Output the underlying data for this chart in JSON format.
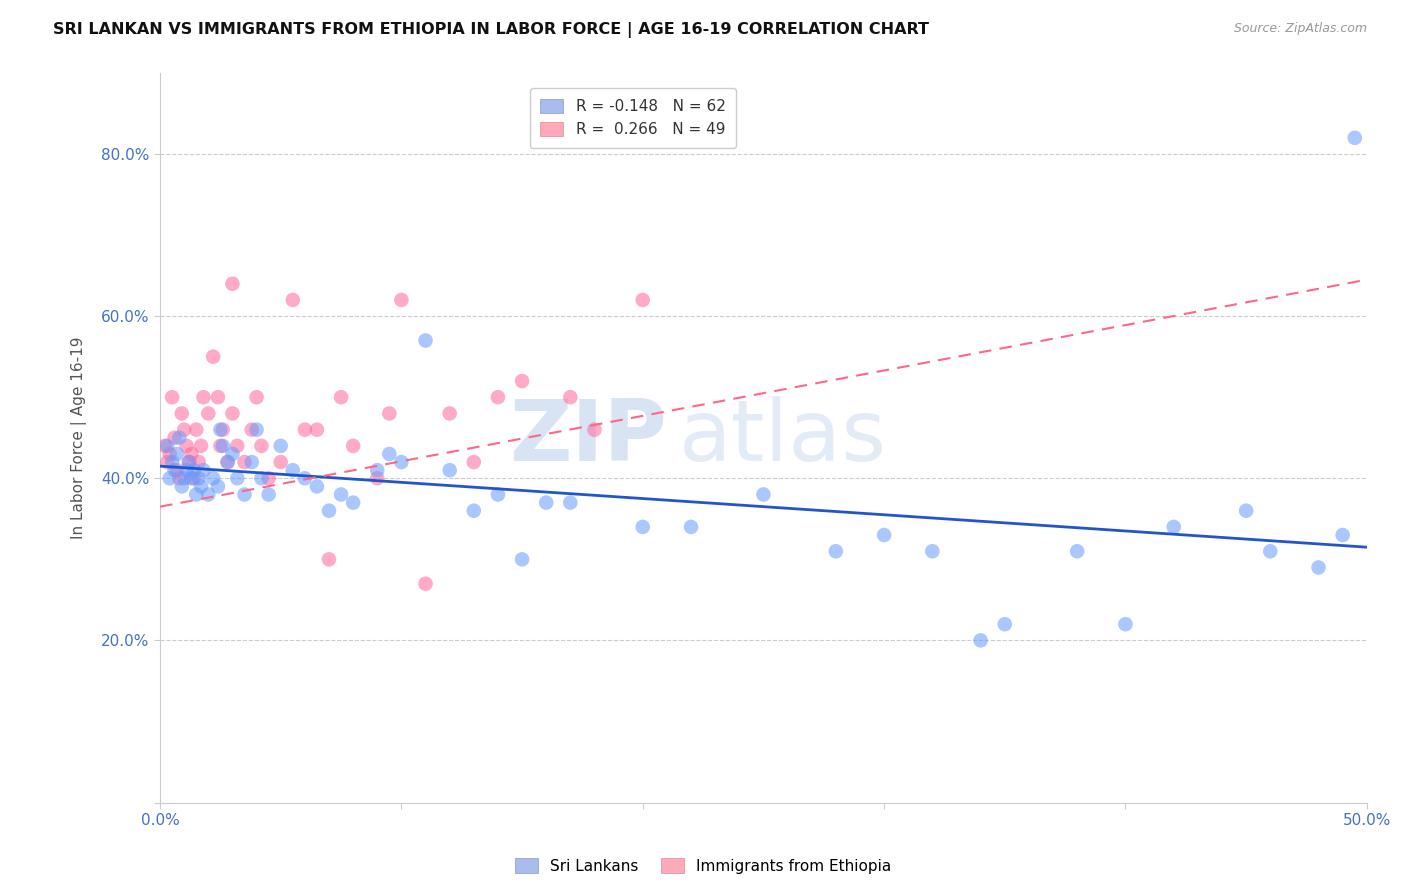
{
  "title": "SRI LANKAN VS IMMIGRANTS FROM ETHIOPIA IN LABOR FORCE | AGE 16-19 CORRELATION CHART",
  "source": "Source: ZipAtlas.com",
  "ylabel": "In Labor Force | Age 16-19",
  "xlim": [
    0.0,
    0.5
  ],
  "ylim": [
    0.0,
    0.9
  ],
  "xticks": [
    0.0,
    0.1,
    0.2,
    0.3,
    0.4,
    0.5
  ],
  "xticklabels": [
    "0.0%",
    "",
    "",
    "",
    "",
    "50.0%"
  ],
  "yticks": [
    0.0,
    0.2,
    0.4,
    0.6,
    0.8
  ],
  "yticklabels": [
    "",
    "20.0%",
    "40.0%",
    "60.0%",
    "80.0%"
  ],
  "sri_lankan_color": "#6699ff",
  "ethiopia_color": "#ff6699",
  "sri_lankan_label": "Sri Lankans",
  "ethiopia_label": "Immigrants from Ethiopia",
  "legend_blue_r": "R = -0.148",
  "legend_blue_n": "N = 62",
  "legend_pink_r": "R =  0.266",
  "legend_pink_n": "N = 49",
  "watermark_zip": "ZIP",
  "watermark_atlas": "atlas",
  "blue_line_x": [
    0.0,
    0.5
  ],
  "blue_line_y": [
    0.415,
    0.315
  ],
  "pink_line_x": [
    0.0,
    0.5
  ],
  "pink_line_y": [
    0.365,
    0.645
  ],
  "sri_lankan_x": [
    0.003,
    0.004,
    0.005,
    0.006,
    0.007,
    0.008,
    0.009,
    0.01,
    0.011,
    0.012,
    0.013,
    0.014,
    0.015,
    0.016,
    0.017,
    0.018,
    0.02,
    0.022,
    0.024,
    0.025,
    0.026,
    0.028,
    0.03,
    0.032,
    0.035,
    0.038,
    0.04,
    0.042,
    0.045,
    0.05,
    0.055,
    0.06,
    0.065,
    0.07,
    0.075,
    0.08,
    0.09,
    0.095,
    0.1,
    0.11,
    0.12,
    0.13,
    0.14,
    0.15,
    0.16,
    0.17,
    0.2,
    0.22,
    0.25,
    0.28,
    0.3,
    0.32,
    0.35,
    0.38,
    0.4,
    0.42,
    0.45,
    0.46,
    0.48,
    0.49,
    0.495,
    0.34
  ],
  "sri_lankan_y": [
    0.44,
    0.4,
    0.42,
    0.41,
    0.43,
    0.45,
    0.39,
    0.4,
    0.41,
    0.42,
    0.4,
    0.41,
    0.38,
    0.4,
    0.39,
    0.41,
    0.38,
    0.4,
    0.39,
    0.46,
    0.44,
    0.42,
    0.43,
    0.4,
    0.38,
    0.42,
    0.46,
    0.4,
    0.38,
    0.44,
    0.41,
    0.4,
    0.39,
    0.36,
    0.38,
    0.37,
    0.41,
    0.43,
    0.42,
    0.57,
    0.41,
    0.36,
    0.38,
    0.3,
    0.37,
    0.37,
    0.34,
    0.34,
    0.38,
    0.31,
    0.33,
    0.31,
    0.22,
    0.31,
    0.22,
    0.34,
    0.36,
    0.31,
    0.29,
    0.33,
    0.82,
    0.2
  ],
  "ethiopia_x": [
    0.002,
    0.003,
    0.004,
    0.005,
    0.006,
    0.007,
    0.008,
    0.009,
    0.01,
    0.011,
    0.012,
    0.013,
    0.014,
    0.015,
    0.016,
    0.017,
    0.018,
    0.02,
    0.022,
    0.024,
    0.025,
    0.026,
    0.028,
    0.03,
    0.032,
    0.035,
    0.038,
    0.04,
    0.042,
    0.045,
    0.05,
    0.055,
    0.06,
    0.065,
    0.07,
    0.075,
    0.08,
    0.09,
    0.095,
    0.1,
    0.11,
    0.12,
    0.13,
    0.14,
    0.15,
    0.17,
    0.18,
    0.2,
    0.03
  ],
  "ethiopia_y": [
    0.44,
    0.42,
    0.43,
    0.5,
    0.45,
    0.41,
    0.4,
    0.48,
    0.46,
    0.44,
    0.42,
    0.43,
    0.4,
    0.46,
    0.42,
    0.44,
    0.5,
    0.48,
    0.55,
    0.5,
    0.44,
    0.46,
    0.42,
    0.48,
    0.44,
    0.42,
    0.46,
    0.5,
    0.44,
    0.4,
    0.42,
    0.62,
    0.46,
    0.46,
    0.3,
    0.5,
    0.44,
    0.4,
    0.48,
    0.62,
    0.27,
    0.48,
    0.42,
    0.5,
    0.52,
    0.5,
    0.46,
    0.62,
    0.64
  ]
}
